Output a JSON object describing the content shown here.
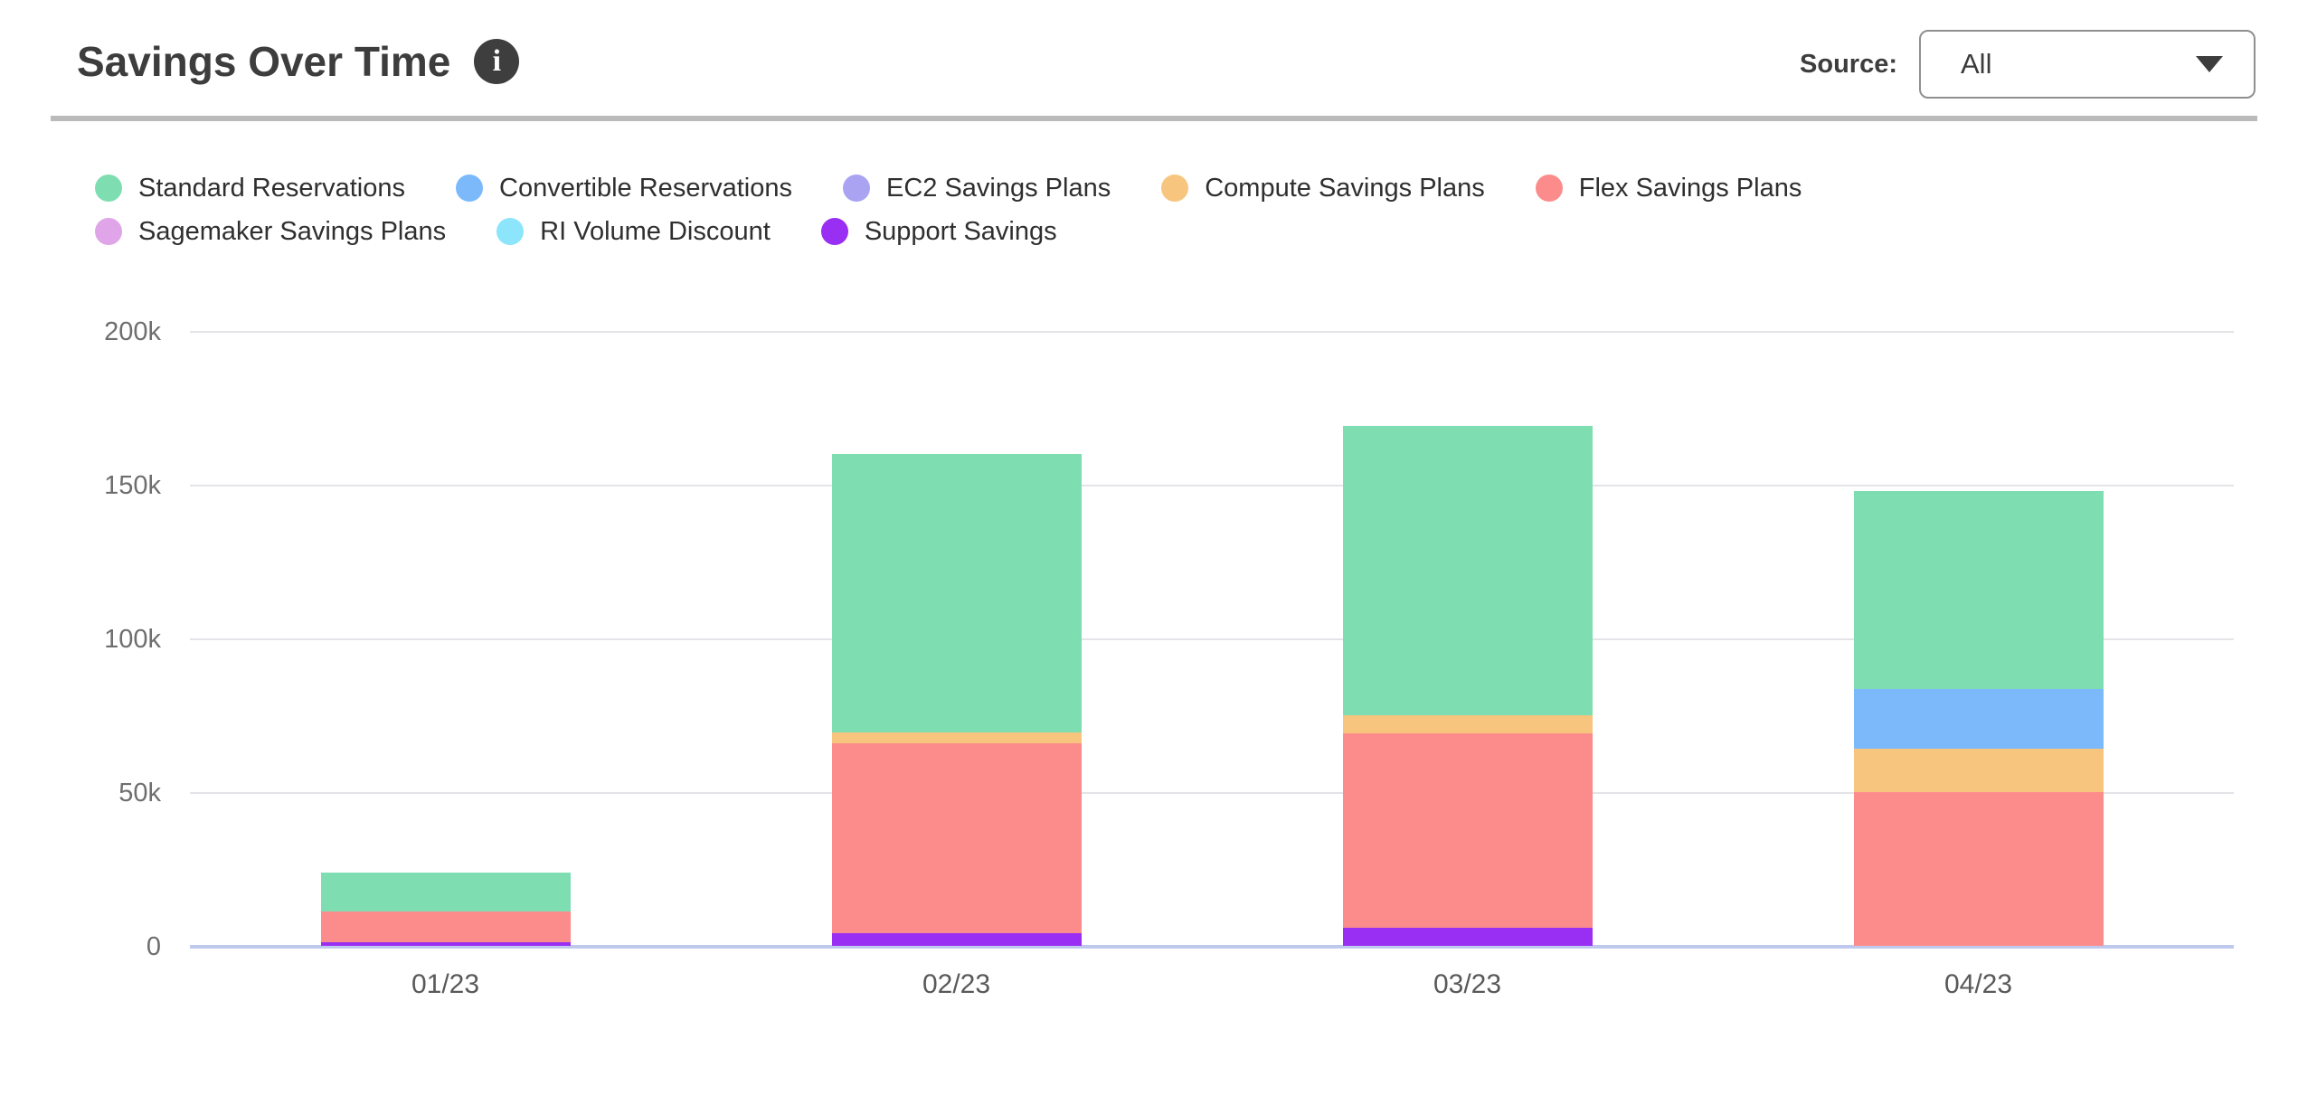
{
  "header": {
    "title": "Savings Over Time",
    "info_icon": "i",
    "source_label": "Source:",
    "source_value": "All"
  },
  "chart_data": {
    "type": "bar",
    "stacked": true,
    "title": "Savings Over Time",
    "categories": [
      "01/23",
      "02/23",
      "03/23",
      "04/23"
    ],
    "series": [
      {
        "name": "Standard Reservations",
        "color": "#7EDEB2",
        "values": [
          12600,
          90500,
          94000,
          64500
        ]
      },
      {
        "name": "Convertible Reservations",
        "color": "#7BB9FB",
        "values": [
          0,
          0,
          0,
          19500
        ]
      },
      {
        "name": "EC2 Savings Plans",
        "color": "#A9A3F2",
        "values": [
          0,
          0,
          0,
          0
        ]
      },
      {
        "name": "Compute Savings Plans",
        "color": "#F8C57E",
        "values": [
          0,
          3500,
          6000,
          14000
        ]
      },
      {
        "name": "Flex Savings Plans",
        "color": "#FC8C8C",
        "values": [
          10000,
          62000,
          63000,
          50000
        ]
      },
      {
        "name": "Sagemaker Savings Plans",
        "color": "#E0A4E9",
        "values": [
          0,
          0,
          0,
          0
        ]
      },
      {
        "name": "RI Volume Discount",
        "color": "#8CE5FA",
        "values": [
          0,
          0,
          0,
          0
        ]
      },
      {
        "name": "Support Savings",
        "color": "#992FF2",
        "values": [
          1200,
          4000,
          6000,
          0
        ]
      }
    ],
    "stack_order_bottom_to_top": [
      "Support Savings",
      "RI Volume Discount",
      "Sagemaker Savings Plans",
      "Flex Savings Plans",
      "Compute Savings Plans",
      "EC2 Savings Plans",
      "Convertible Reservations",
      "Standard Reservations"
    ],
    "yticks": [
      {
        "value": 0,
        "label": "0"
      },
      {
        "value": 50000,
        "label": "50k"
      },
      {
        "value": 100000,
        "label": "100k"
      },
      {
        "value": 150000,
        "label": "150k"
      },
      {
        "value": 200000,
        "label": "200k"
      }
    ],
    "ylim": [
      0,
      200000
    ],
    "xlabel": "",
    "ylabel": "",
    "grid": "horizontal",
    "legend_position": "top"
  },
  "colors": {
    "axis_line": "#BFC9ED",
    "gridline": "#E4E4E8",
    "divider": "#BABABA",
    "title_text": "#3D3D3D",
    "tick_text": "#6E6E6E",
    "xlabel_text": "#595959",
    "legend_text": "#2F2F2F",
    "info_icon_bg": "#3E3E3E",
    "dropdown_border": "#8F8F8F"
  }
}
